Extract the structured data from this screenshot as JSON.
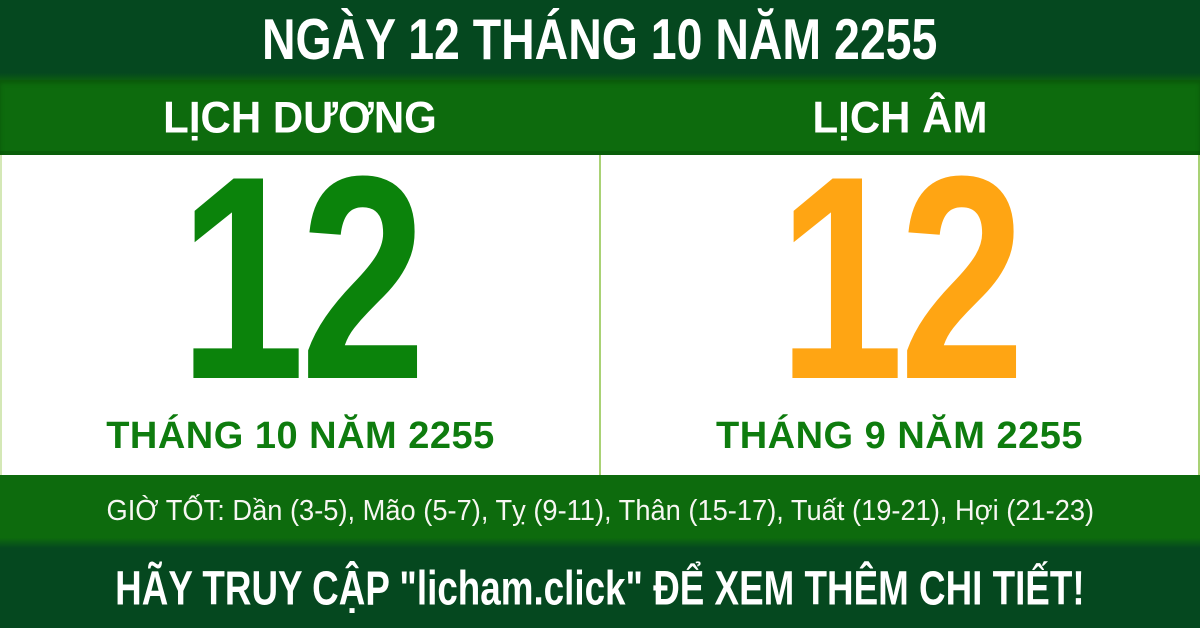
{
  "top_banner": {
    "title": "NGÀY 12 THÁNG 10 NĂM 2255"
  },
  "solar": {
    "header": "LỊCH DƯƠNG",
    "day": "12",
    "month_year": "THÁNG 10 NĂM 2255"
  },
  "lunar": {
    "header": "LỊCH ÂM",
    "day": "12",
    "month_year": "THÁNG 9 NĂM 2255"
  },
  "good_hours": {
    "label": "GIỜ TỐT",
    "items": [
      "Dần (3-5)",
      "Mão (5-7)",
      "Tỵ (9-11)",
      "Thân (15-17)",
      "Tuất (19-21)",
      "Hợi (21-23)"
    ],
    "text": "GIỜ TỐT: Dần (3-5), Mão (5-7), Tỵ (9-11), Thân (15-17), Tuất (19-21), Hợi (21-23)"
  },
  "footer": {
    "site": "licham.click",
    "text": "HÃY TRUY CẬP \"licham.click\" ĐỂ XEM THÊM CHI TIẾT!"
  },
  "colors": {
    "dark_green": "#05481f",
    "green": "#0d6b0d",
    "solar_day": "#0b830b",
    "lunar_day": "#ffa513",
    "month_label": "#0e7c0e",
    "divider": "#a9d275",
    "text_light": "#ffffff"
  }
}
